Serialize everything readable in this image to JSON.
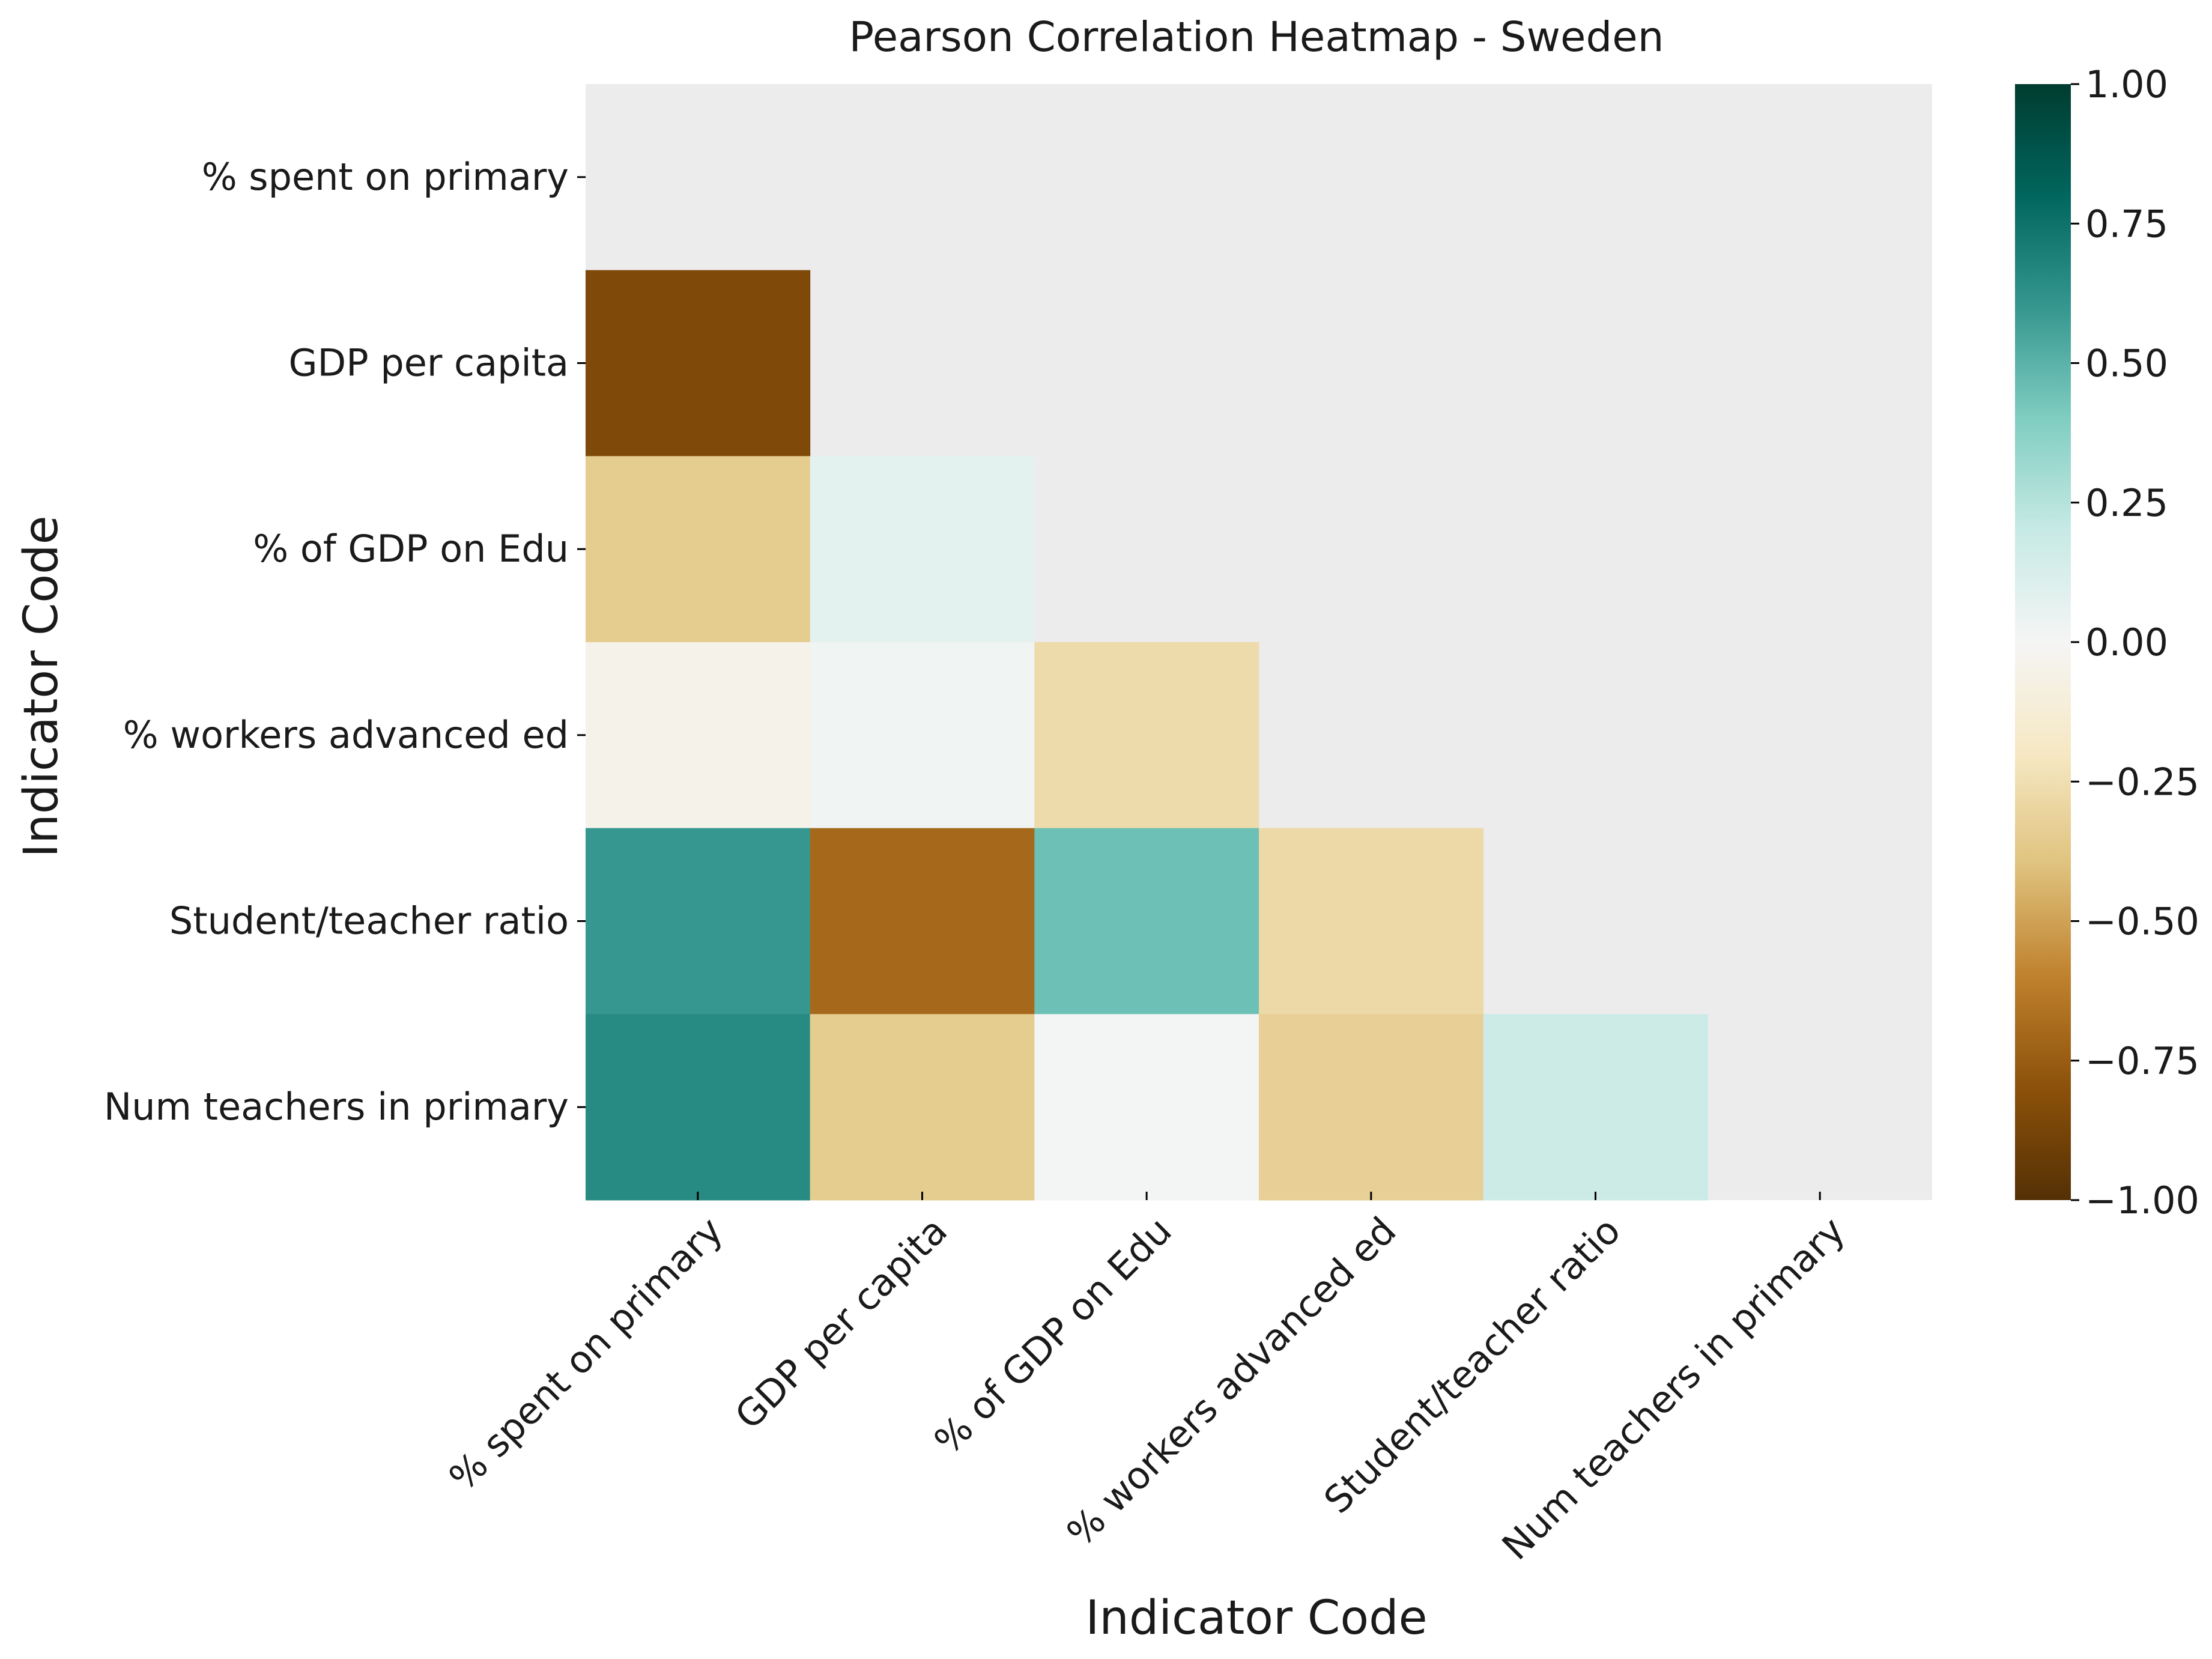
{
  "chart_data": {
    "type": "heatmap",
    "title": "Pearson Correlation Heatmap - Sweden",
    "xlabel": "Indicator Code",
    "ylabel": "Indicator Code",
    "row_labels": [
      "% spent on primary",
      "GDP per capita",
      "% of GDP on Edu",
      "% workers advanced ed",
      "Student/teacher ratio",
      "Num teachers in primary"
    ],
    "col_labels": [
      "% spent on primary",
      "GDP per capita",
      "% of GDP on Edu",
      "% workers advanced ed",
      "Student/teacher ratio",
      "Num teachers in primary"
    ],
    "values": [
      [
        null,
        null,
        null,
        null,
        null,
        null
      ],
      [
        -0.85,
        null,
        null,
        null,
        null,
        null
      ],
      [
        -0.35,
        0.08,
        null,
        null,
        null,
        null
      ],
      [
        -0.05,
        0.02,
        -0.27,
        null,
        null,
        null
      ],
      [
        0.6,
        -0.7,
        0.45,
        -0.28,
        null,
        null
      ],
      [
        0.65,
        -0.35,
        0.01,
        -0.33,
        0.18,
        null
      ]
    ],
    "masked": "upper triangle including diagonal",
    "colormap": "BrBG",
    "vmin": -1.0,
    "vmax": 1.0,
    "colorbar_ticks": [
      "1.00",
      "0.75",
      "0.50",
      "0.25",
      "0.00",
      "−0.25",
      "−0.50",
      "−0.75",
      "−1.00"
    ],
    "colorbar_tick_values": [
      1.0,
      0.75,
      0.5,
      0.25,
      0.0,
      -0.25,
      -0.5,
      -0.75,
      -1.0
    ],
    "background_color": "#ececec",
    "grid": false
  }
}
